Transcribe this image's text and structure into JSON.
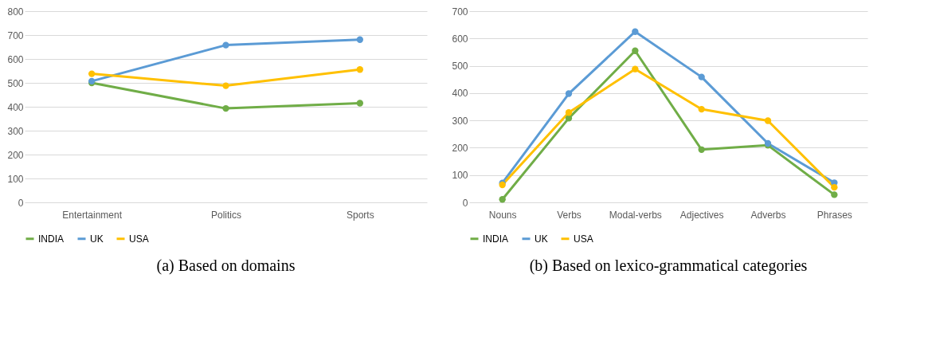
{
  "chart_data": [
    {
      "type": "line",
      "title": "(a) Based on domains",
      "categories": [
        "Entertainment",
        "Politics",
        "Sports"
      ],
      "ylim": [
        0,
        800
      ],
      "yticks": [
        0,
        100,
        200,
        300,
        400,
        500,
        600,
        700,
        800
      ],
      "grid": "y",
      "legend": "bottom",
      "marker": "circle",
      "line_style": "solid",
      "series": [
        {
          "name": "INDIA",
          "color": "#70ad47",
          "values": [
            500,
            393,
            415
          ]
        },
        {
          "name": "UK",
          "color": "#5b9bd5",
          "values": [
            507,
            658,
            681
          ]
        },
        {
          "name": "USA",
          "color": "#ffc000",
          "values": [
            538,
            488,
            556
          ]
        }
      ]
    },
    {
      "type": "line",
      "title": "(b) Based on lexico-grammatical categories",
      "categories": [
        "Nouns",
        "Verbs",
        "Modal-verbs",
        "Adjectives",
        "Adverbs",
        "Phrases"
      ],
      "ylim": [
        0,
        700
      ],
      "yticks": [
        0,
        100,
        200,
        300,
        400,
        500,
        600,
        700
      ],
      "grid": "y",
      "legend": "bottom",
      "marker": "circle",
      "line_style": "solid",
      "series": [
        {
          "name": "INDIA",
          "color": "#70ad47",
          "values": [
            11,
            308,
            555,
            193,
            209,
            28
          ]
        },
        {
          "name": "UK",
          "color": "#5b9bd5",
          "values": [
            71,
            398,
            625,
            459,
            216,
            72
          ]
        },
        {
          "name": "USA",
          "color": "#ffc000",
          "values": [
            64,
            329,
            488,
            341,
            299,
            55
          ]
        }
      ]
    }
  ]
}
